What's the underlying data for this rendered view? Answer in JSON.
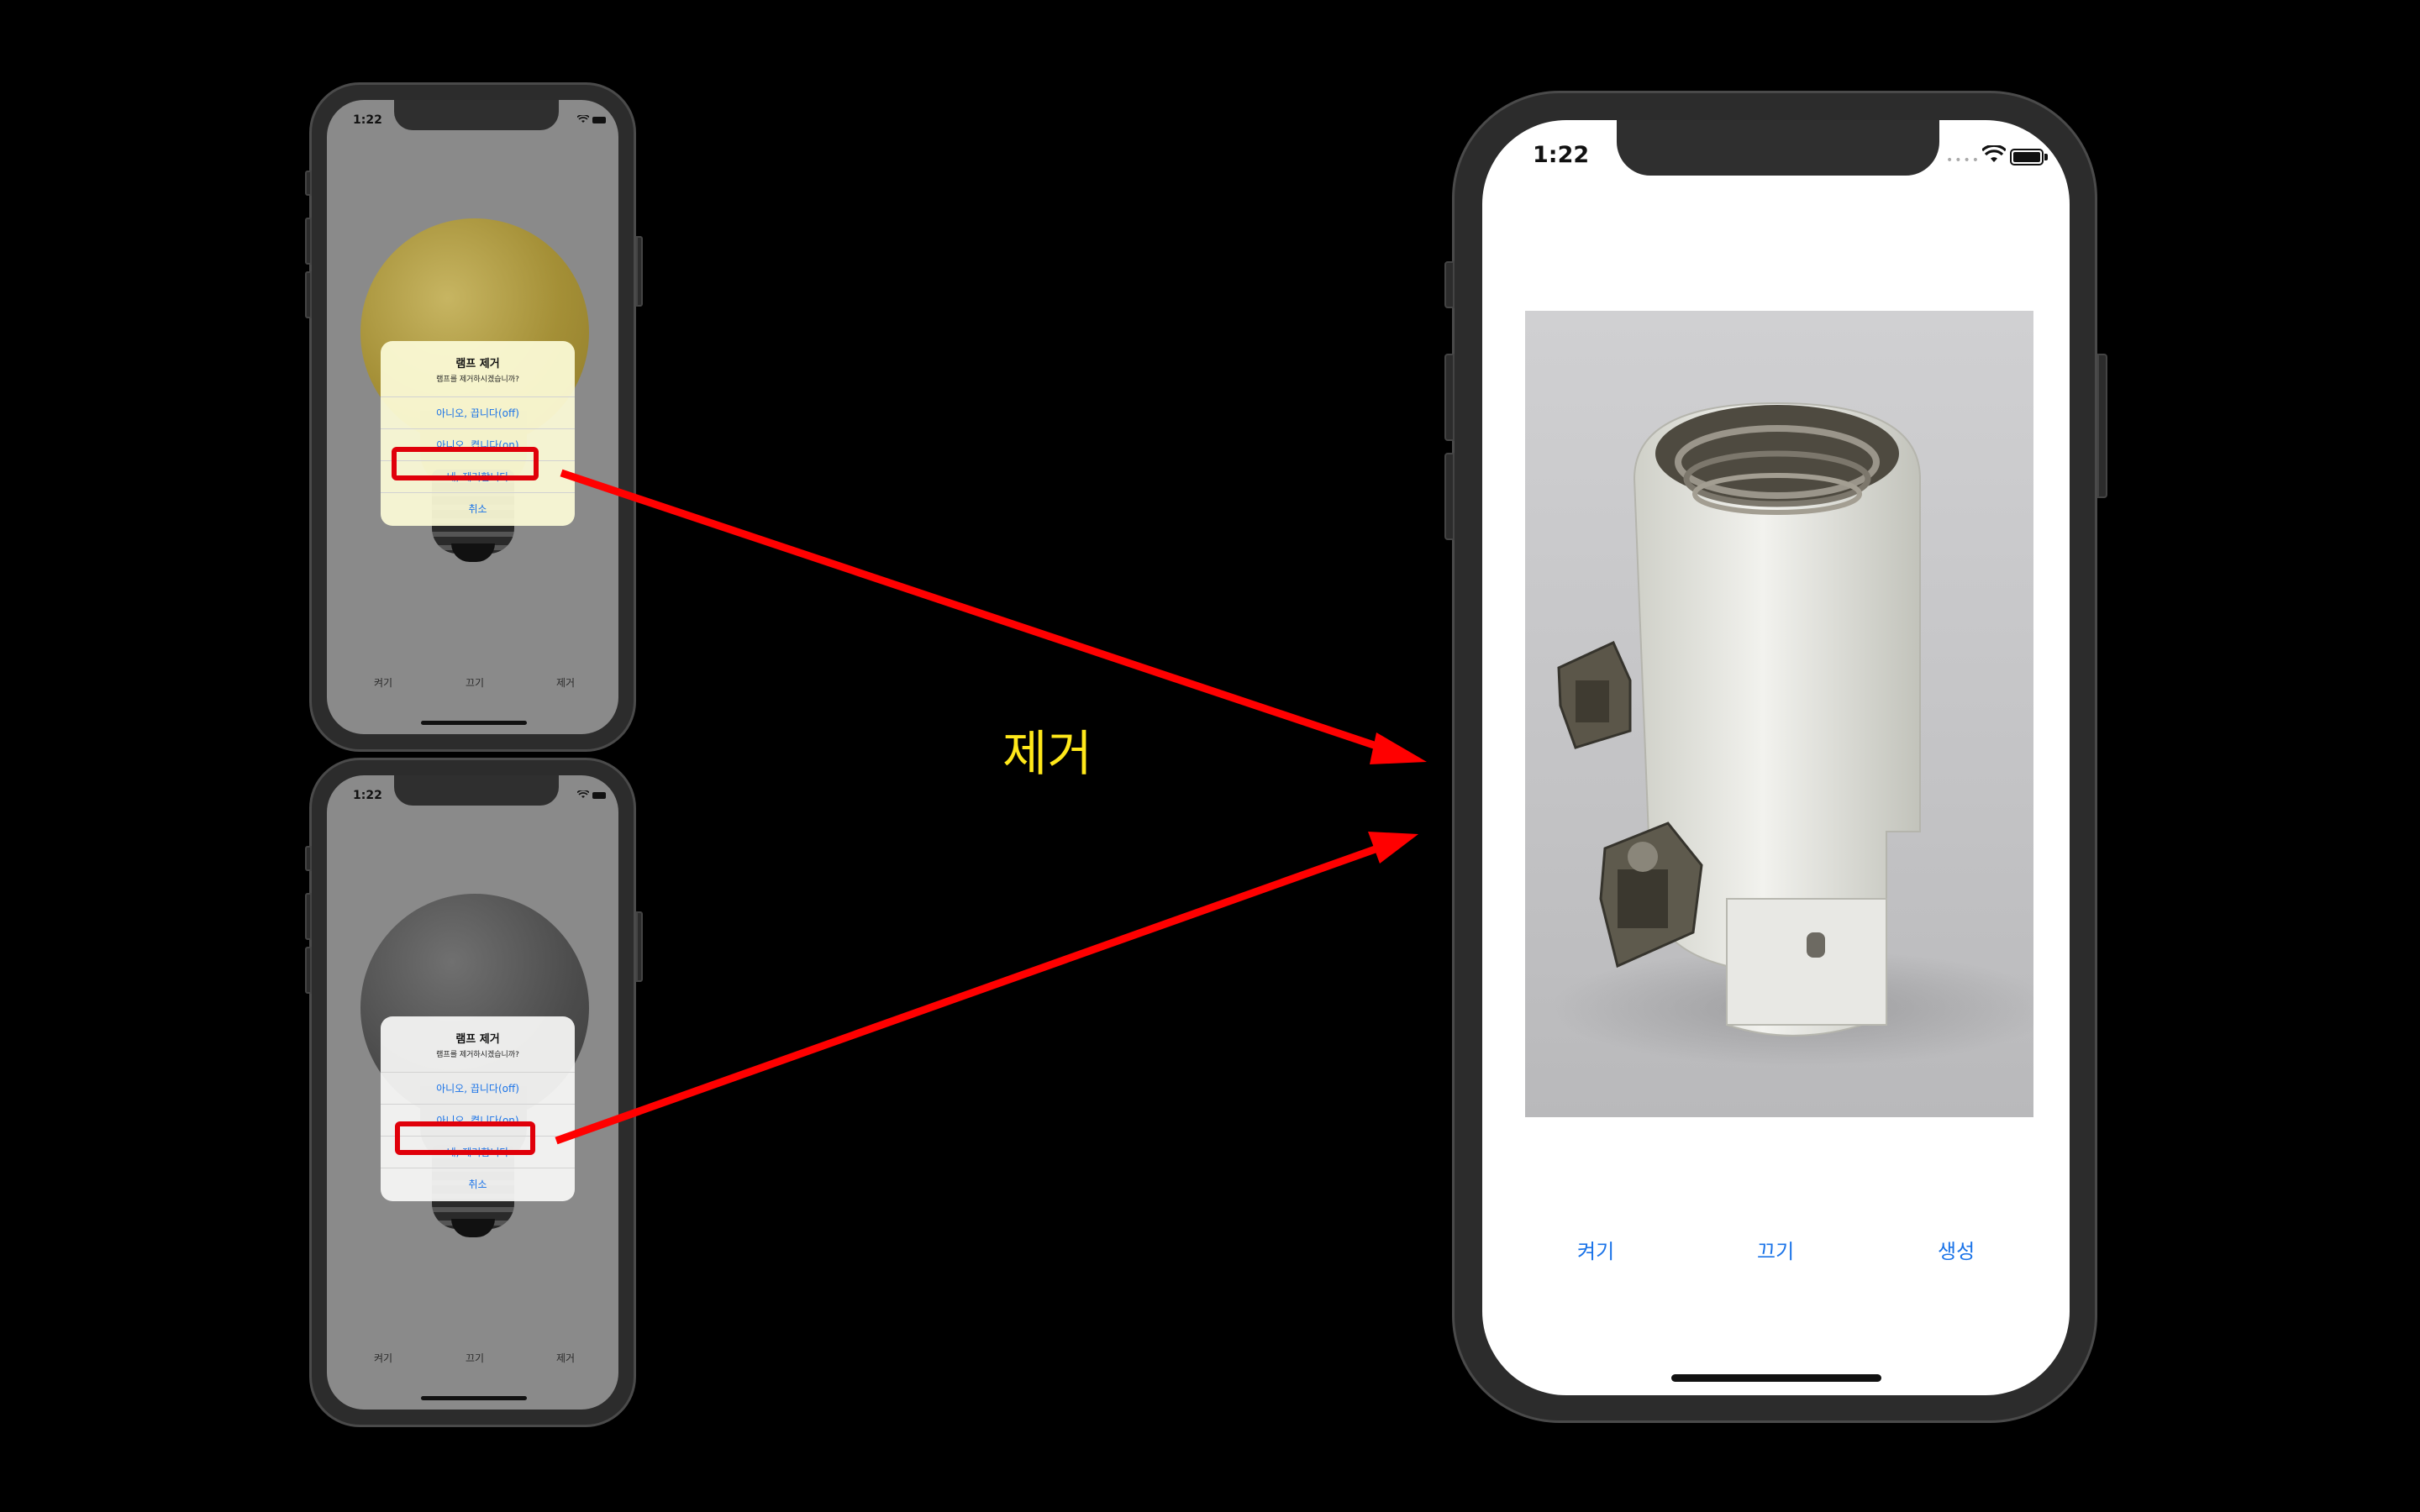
{
  "small_phone": {
    "time": "1:22",
    "tabs": [
      "켜기",
      "끄기",
      "제거"
    ],
    "alert": {
      "title": "램프 제거",
      "message": "램프를 제거하시겠습니까?",
      "buttons": [
        "아니오, 끕니다(off)",
        "아니오, 켭니다(on)",
        "네, 제거합니다",
        "취소"
      ]
    }
  },
  "big_phone": {
    "time": "1:22",
    "tabs": [
      "켜기",
      "끄기",
      "생성"
    ]
  },
  "caption": "제거",
  "colors": {
    "accent": "#1a73e8",
    "highlight": "#e0000a",
    "caption": "#ffe81a",
    "arrow": "#ff0000"
  }
}
